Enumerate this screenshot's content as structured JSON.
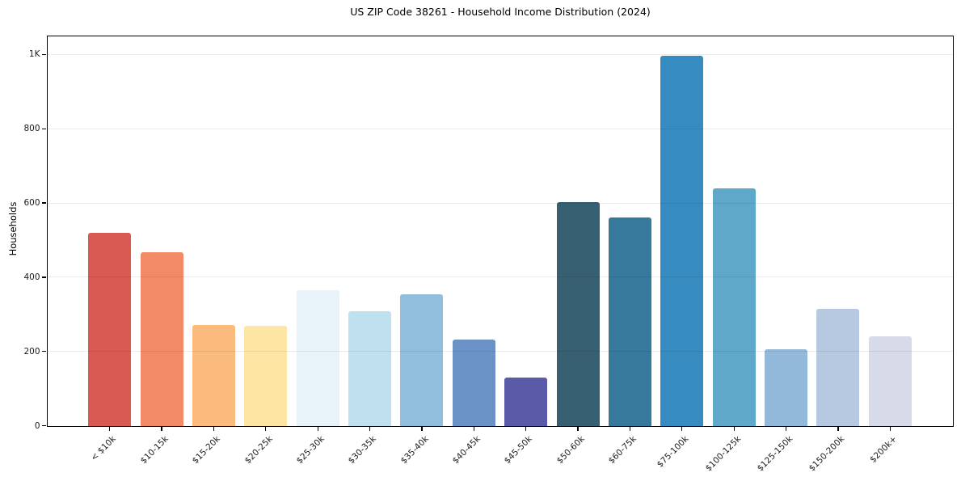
{
  "chart_data": {
    "type": "bar",
    "title": "US ZIP Code 38261 - Household Income Distribution (2024)",
    "xlabel": "",
    "ylabel": "Households",
    "categories": [
      "< $10k",
      "$10-15k",
      "$15-20k",
      "$20-25k",
      "$25-30k",
      "$30-35k",
      "$35-40k",
      "$40-45k",
      "$45-50k",
      "$50-60k",
      "$60-75k",
      "$75-100k",
      "$100-125k",
      "$125-150k",
      "$150-200k",
      "$200k+"
    ],
    "values": [
      520,
      468,
      271,
      268,
      366,
      308,
      353,
      232,
      130,
      603,
      560,
      997,
      640,
      206,
      314,
      240
    ],
    "bar_colors": [
      "#d95a52",
      "#f28a67",
      "#fbbb7d",
      "#fde5a3",
      "#e7f3f8",
      "#bfe0ee",
      "#92bede",
      "#6b92c7",
      "#5b5aa8",
      "#375f72",
      "#36799d",
      "#368cc1",
      "#60a8ca",
      "#92b9da",
      "#b6c9e1",
      "#d7dae8"
    ],
    "ytick_values": [
      0,
      200,
      400,
      600,
      800,
      1000
    ],
    "ytick_labels": [
      "0",
      "200",
      "400",
      "600",
      "800",
      "1K"
    ],
    "ylim": [
      0,
      1050
    ],
    "grid": "horizontal",
    "legend": "none",
    "x_tick_rotation": 45,
    "background": "#ffffff",
    "spine_color": "#000000",
    "grid_color": "#ebebeb",
    "text_color": "#1a1a1a"
  }
}
